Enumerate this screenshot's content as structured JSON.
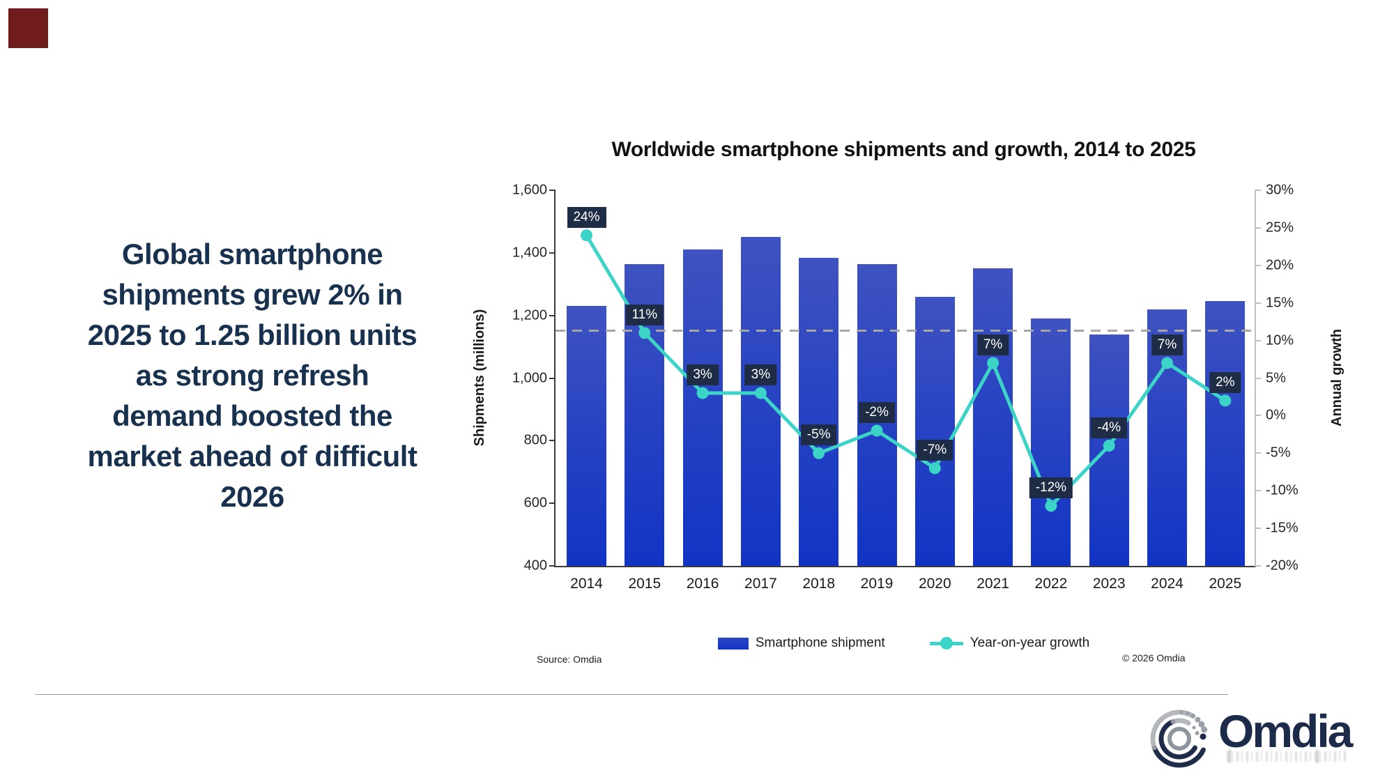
{
  "brand": {
    "accent_color": "#701b1c"
  },
  "headline": {
    "lines": [
      "Global smartphone",
      "shipments grew 2% in",
      "2025 to 1.25 billion units",
      "as strong refresh",
      "demand boosted the",
      "market ahead of difficult",
      "2026"
    ],
    "color": "#17314e"
  },
  "chart_data": {
    "type": "bar+line",
    "title": "Worldwide smartphone shipments and growth, 2014 to 2025",
    "categories": [
      "2014",
      "2015",
      "2016",
      "2017",
      "2018",
      "2019",
      "2020",
      "2021",
      "2022",
      "2023",
      "2024",
      "2025"
    ],
    "series": [
      {
        "name": "Smartphone shipment",
        "type": "bar",
        "axis": "left",
        "unit": "millions of units",
        "values": [
          1230,
          1365,
          1410,
          1450,
          1385,
          1365,
          1260,
          1350,
          1190,
          1140,
          1220,
          1245
        ]
      },
      {
        "name": "Year-on-year growth",
        "type": "line",
        "axis": "right",
        "unit": "percent",
        "values": [
          24,
          11,
          3,
          3,
          -5,
          -2,
          -7,
          7,
          -12,
          -4,
          7,
          2
        ],
        "point_labels": [
          "24%",
          "11%",
          "3%",
          "3%",
          "-5%",
          "-2%",
          "-7%",
          "7%",
          "-12%",
          "-4%",
          "7%",
          "2%"
        ]
      }
    ],
    "left_axis": {
      "title": "Shipments (millions)",
      "min": 400,
      "max": 1600,
      "step": 200,
      "tick_labels": [
        "1,600",
        "1,400",
        "1,200",
        "1,000",
        "800",
        "600",
        "400"
      ]
    },
    "right_axis": {
      "title": "Annual growth",
      "min": -20,
      "max": 30,
      "step": 5,
      "tick_labels": [
        "30%",
        "25%",
        "20%",
        "15%",
        "10%",
        "5%",
        "0%",
        "-5%",
        "-10%",
        "-15%",
        "-20%"
      ]
    },
    "reference_line": {
      "axis": "right",
      "value": 11.3,
      "style": "dashed",
      "color": "#a6a6a6"
    },
    "gridlines": false,
    "legend_position": "bottom-center",
    "legend": [
      {
        "label": "Smartphone shipment",
        "swatch": "bar"
      },
      {
        "label": "Year-on-year growth",
        "swatch": "line-marker"
      }
    ],
    "colors": {
      "bar_top": "#3f52c0",
      "bar_bottom": "#1134c4",
      "line": "#3bd4c6",
      "badge_bg": "#1f2c46",
      "badge_text": "#ffffff"
    }
  },
  "source_note": "Source: Omdia",
  "copyright_note": "© 2026 Omdia",
  "logo": {
    "wordmark": "Omdia"
  }
}
